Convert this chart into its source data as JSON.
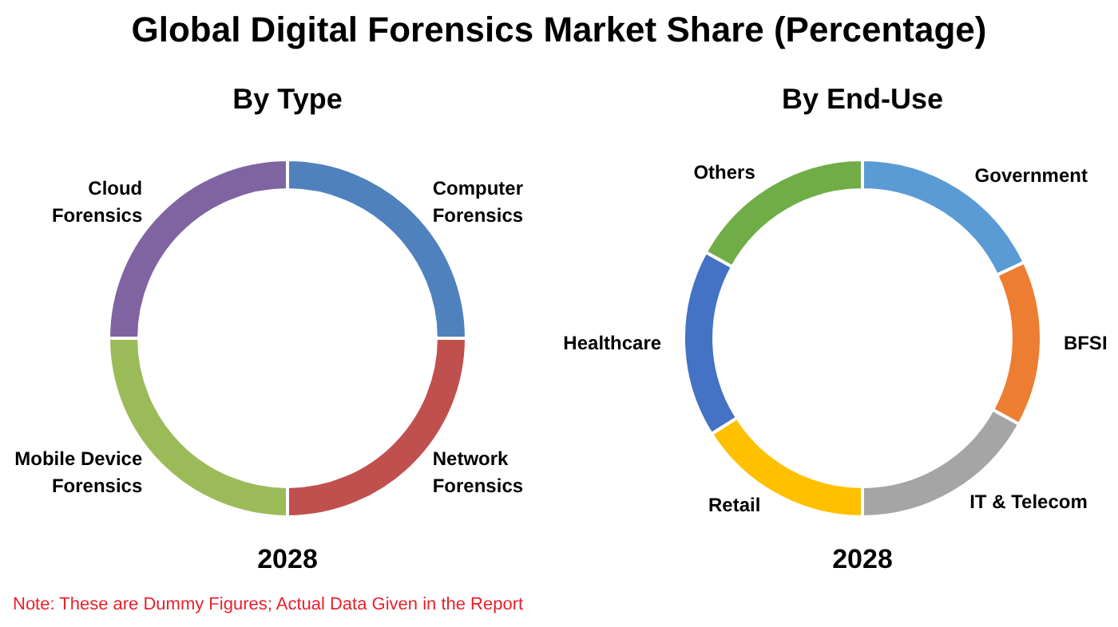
{
  "chart_data": [
    {
      "type": "other",
      "title": "Global Digital Forensics Market Share (Percentage)",
      "annotations": [
        "Note: These are Dummy Figures; Actual Data Given in the Report"
      ]
    },
    {
      "type": "donut",
      "title": "By Type",
      "subtitle": "2028",
      "categories": [
        "Computer Forensics",
        "Network Forensics",
        "Mobile Device Forensics",
        "Cloud Forensics"
      ],
      "values": [
        25,
        25,
        25,
        25
      ],
      "colors": [
        "#4f81bd",
        "#c0504d",
        "#9bbb59",
        "#8064a2"
      ]
    },
    {
      "type": "donut",
      "title": "By End-Use",
      "subtitle": "2028",
      "categories": [
        "Government",
        "BFSI",
        "IT & Telecom",
        "Retail",
        "Healthcare",
        "Others"
      ],
      "values": [
        18,
        15,
        17,
        16,
        17,
        17
      ],
      "colors": [
        "#5b9bd5",
        "#ed7d31",
        "#a5a5a5",
        "#ffc000",
        "#4472c4",
        "#70ad47"
      ]
    }
  ]
}
